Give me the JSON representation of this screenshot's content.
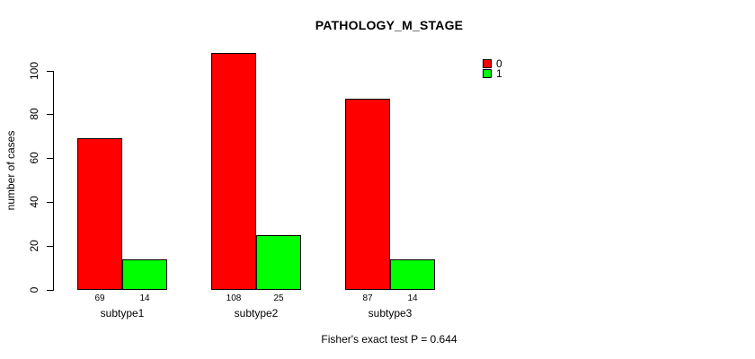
{
  "chart_data": {
    "type": "bar",
    "title": "PATHOLOGY_M_STAGE",
    "ylabel": "number of cases",
    "xlabel": "",
    "categories": [
      "subtype1",
      "subtype2",
      "subtype3"
    ],
    "series": [
      {
        "name": "0",
        "color": "#ff0000",
        "values": [
          69,
          108,
          87
        ]
      },
      {
        "name": "1",
        "color": "#00ff00",
        "values": [
          14,
          25,
          14
        ]
      }
    ],
    "bar_value_labels": [
      [
        "69",
        "14"
      ],
      [
        "108",
        "25"
      ],
      [
        "87",
        "14"
      ]
    ],
    "ylim": [
      0,
      100
    ],
    "yticks": [
      0,
      20,
      40,
      60,
      80,
      100
    ],
    "grid": false,
    "legend_position": "top-right",
    "legend_entries": [
      {
        "label": "0",
        "color": "#ff0000"
      },
      {
        "label": "1",
        "color": "#00ff00"
      }
    ],
    "footnote": "Fisher's exact test P = 0.644"
  },
  "colors": {
    "background": "#ffffff",
    "bar_border": "#000000",
    "axis": "#000000",
    "text": "#000000",
    "series_0": "#ff0000",
    "series_1": "#00ff00"
  }
}
